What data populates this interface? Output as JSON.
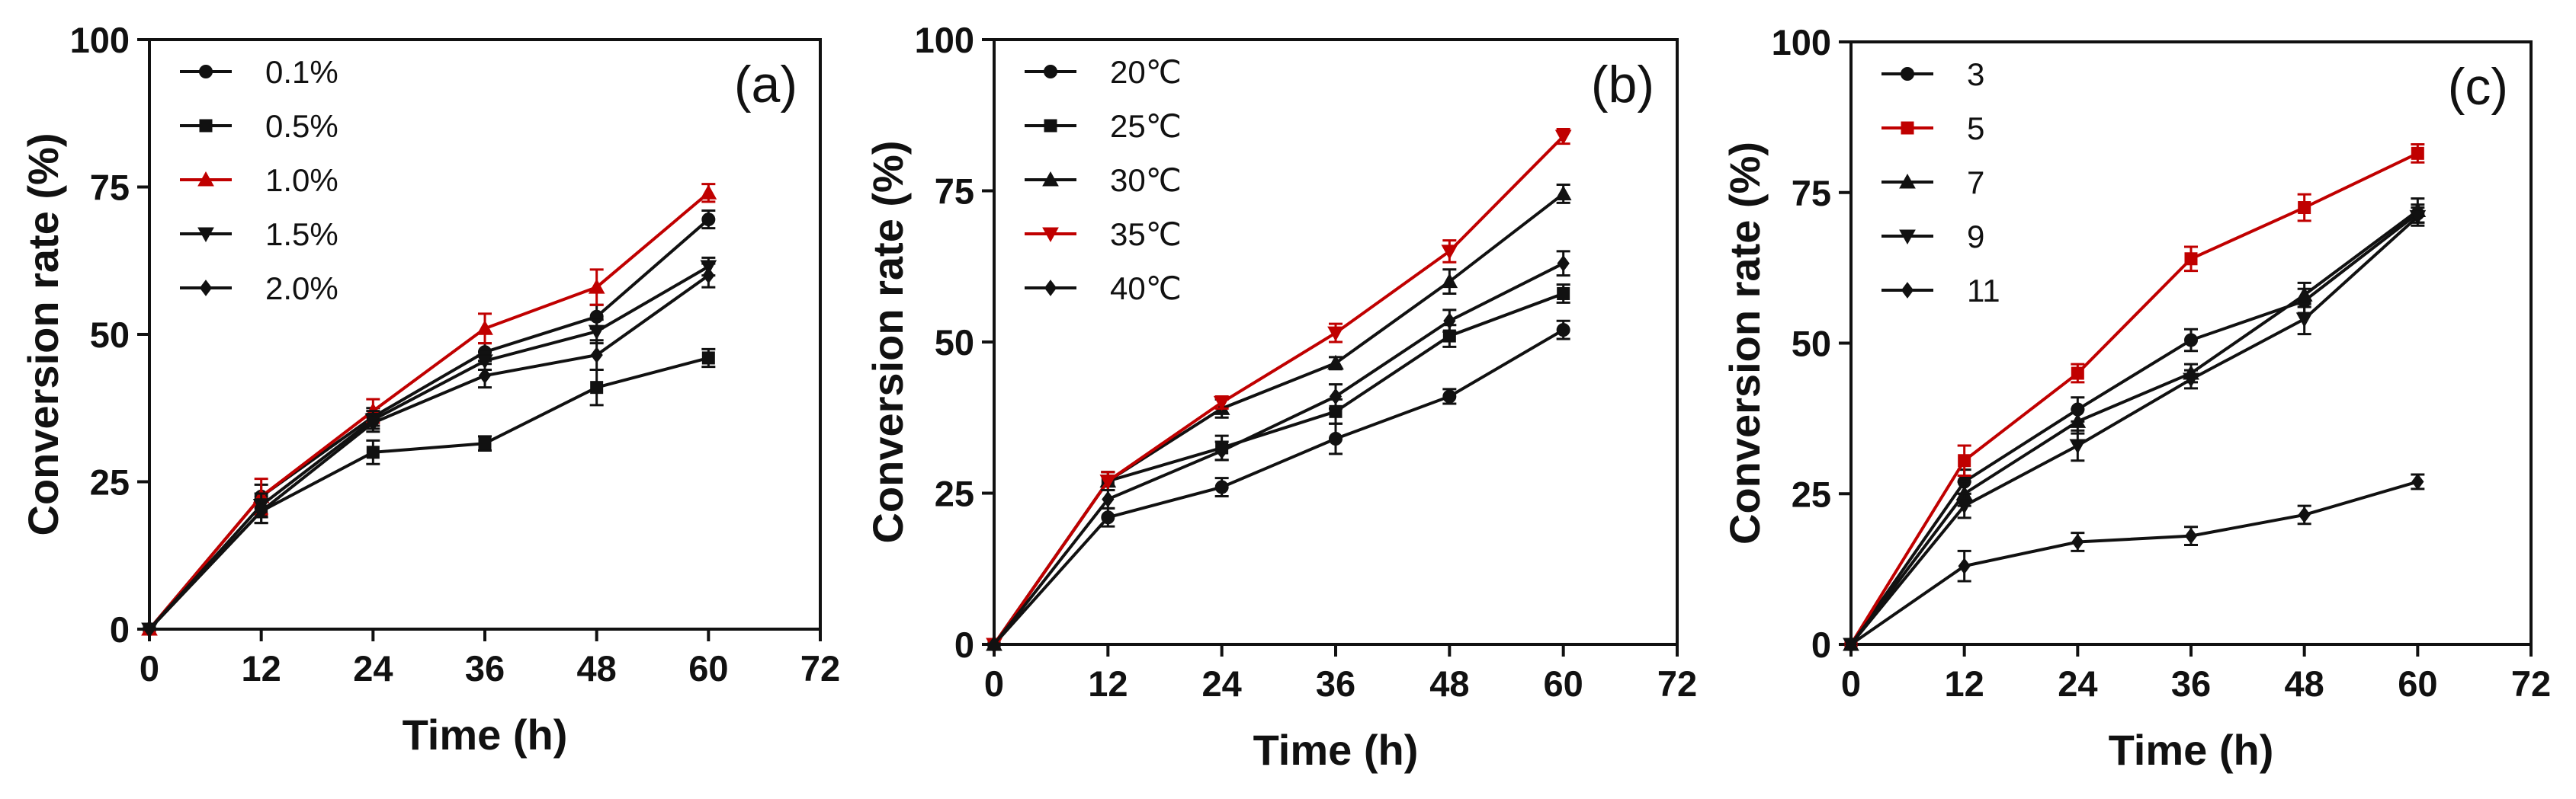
{
  "chart_data": [
    {
      "type": "line",
      "panel_label": "(a)",
      "xlabel": "Time (h)",
      "ylabel": "Conversion rate (%)",
      "xlim": [
        0,
        72
      ],
      "ylim": [
        0,
        100
      ],
      "xticks": [
        0,
        12,
        24,
        36,
        48,
        60,
        72
      ],
      "yticks": [
        0,
        25,
        50,
        75,
        100
      ],
      "x": [
        0,
        12,
        24,
        36,
        48,
        60
      ],
      "legend_position": "top-left",
      "series": [
        {
          "name": "0.1%",
          "marker": "circle",
          "color": "#111111",
          "values": [
            0,
            22.5,
            36,
            47,
            53,
            69.5
          ],
          "errors": [
            0,
            2,
            1.5,
            1.5,
            2,
            1.5
          ]
        },
        {
          "name": "0.5%",
          "marker": "square",
          "color": "#111111",
          "values": [
            0,
            20,
            30,
            31.5,
            41,
            46
          ],
          "errors": [
            0,
            2,
            2,
            1.2,
            3,
            1.5
          ]
        },
        {
          "name": "1.0%",
          "marker": "triangle-up",
          "color": "#c00000",
          "values": [
            0,
            22.5,
            37,
            51,
            58,
            74
          ],
          "errors": [
            0,
            3,
            2,
            2.5,
            3,
            1.5
          ]
        },
        {
          "name": "1.5%",
          "marker": "triangle-down",
          "color": "#111111",
          "values": [
            0,
            21,
            35.5,
            45.5,
            50.5,
            61.5
          ],
          "errors": [
            0,
            2,
            1.5,
            1.5,
            2,
            1.5
          ]
        },
        {
          "name": "2.0%",
          "marker": "diamond",
          "color": "#111111",
          "values": [
            0,
            20,
            35,
            43,
            46.5,
            60
          ],
          "errors": [
            0,
            2,
            1.5,
            2,
            2.5,
            2
          ]
        }
      ]
    },
    {
      "type": "line",
      "panel_label": "(b)",
      "xlabel": "Time (h)",
      "ylabel": "Conversion rate (%)",
      "xlim": [
        0,
        72
      ],
      "ylim": [
        0,
        100
      ],
      "xticks": [
        0,
        12,
        24,
        36,
        48,
        60,
        72
      ],
      "yticks": [
        0,
        25,
        50,
        75,
        100
      ],
      "x": [
        0,
        12,
        24,
        36,
        48,
        60
      ],
      "legend_position": "top-left",
      "series": [
        {
          "name": "20℃",
          "marker": "circle",
          "color": "#111111",
          "values": [
            0,
            21,
            26,
            34,
            41,
            52
          ],
          "errors": [
            0,
            1.5,
            1.5,
            2.5,
            1.2,
            1.5
          ]
        },
        {
          "name": "25℃",
          "marker": "square",
          "color": "#111111",
          "values": [
            0,
            27,
            32.5,
            38.5,
            51,
            58
          ],
          "errors": [
            0,
            1.5,
            2,
            2,
            1.8,
            1.5
          ]
        },
        {
          "name": "30℃",
          "marker": "triangle-up",
          "color": "#111111",
          "values": [
            0,
            27,
            39,
            46.5,
            60,
            74.5
          ],
          "errors": [
            0,
            1.5,
            1.5,
            1,
            2,
            1.5
          ]
        },
        {
          "name": "35℃",
          "marker": "triangle-down",
          "color": "#c00000",
          "values": [
            0,
            27,
            40,
            51.5,
            65,
            84
          ],
          "errors": [
            0,
            1.5,
            1,
            1.5,
            1.8,
            1.2
          ]
        },
        {
          "name": "40℃",
          "marker": "diamond",
          "color": "#111111",
          "values": [
            0,
            24,
            32,
            41,
            53.5,
            63
          ],
          "errors": [
            0,
            1.5,
            1.5,
            2,
            1.8,
            2
          ]
        }
      ]
    },
    {
      "type": "line",
      "panel_label": "(c)",
      "xlabel": "Time (h)",
      "ylabel": "Conversion rate (%)",
      "xlim": [
        0,
        72
      ],
      "ylim": [
        0,
        100
      ],
      "xticks": [
        0,
        12,
        24,
        36,
        48,
        60,
        72
      ],
      "yticks": [
        0,
        25,
        50,
        75,
        100
      ],
      "x": [
        0,
        12,
        24,
        36,
        48,
        60
      ],
      "legend_position": "top-left",
      "series": [
        {
          "name": "3",
          "marker": "circle",
          "color": "#111111",
          "values": [
            0,
            27,
            39,
            50.5,
            57,
            71.5
          ],
          "errors": [
            0,
            2,
            2,
            1.8,
            2,
            1.5
          ]
        },
        {
          "name": "5",
          "marker": "square",
          "color": "#c00000",
          "values": [
            0,
            30.5,
            45,
            64,
            72.5,
            81.5
          ],
          "errors": [
            0,
            2.5,
            1.5,
            2,
            2.2,
            1.5
          ]
        },
        {
          "name": "7",
          "marker": "triangle-up",
          "color": "#111111",
          "values": [
            0,
            25,
            37,
            45,
            58,
            72
          ],
          "errors": [
            0,
            2,
            2,
            1.5,
            2,
            2
          ]
        },
        {
          "name": "9",
          "marker": "triangle-down",
          "color": "#111111",
          "values": [
            0,
            23,
            33,
            44,
            54,
            71
          ],
          "errors": [
            0,
            2,
            2.5,
            1.5,
            2.5,
            1.5
          ]
        },
        {
          "name": "11",
          "marker": "diamond",
          "color": "#111111",
          "values": [
            0,
            13,
            17,
            18,
            21.5,
            27
          ],
          "errors": [
            0,
            2.5,
            1.5,
            1.5,
            1.5,
            1.2
          ]
        }
      ]
    }
  ]
}
